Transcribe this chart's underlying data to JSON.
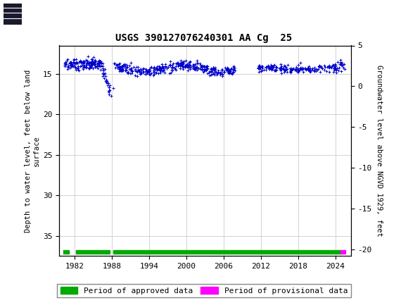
{
  "title": "USGS 390127076240301 AA Cg  25",
  "ylabel_left": "Depth to water level, feet below land\nsurface",
  "ylabel_right": "Groundwater level above NGVD 1929, feet",
  "ylim_left": [
    37.5,
    11.5
  ],
  "ylim_right": [
    -20.83,
    5.0
  ],
  "yticks_left": [
    15,
    20,
    25,
    30,
    35
  ],
  "yticks_right": [
    5,
    0,
    -5,
    -10,
    -15,
    -20
  ],
  "xticks": [
    1982,
    1988,
    1994,
    2000,
    2006,
    2012,
    2018,
    2024
  ],
  "xlim": [
    1979.5,
    2026.5
  ],
  "header_color": "#006633",
  "data_color": "#0000CC",
  "approved_color": "#00AA00",
  "provisional_color": "#FF00FF",
  "grid_color": "#CCCCCC",
  "background_color": "#FFFFFF",
  "plot_bg_color": "#FFFFFF",
  "legend_approved": "Period of approved data",
  "legend_provisional": "Period of provisional data"
}
